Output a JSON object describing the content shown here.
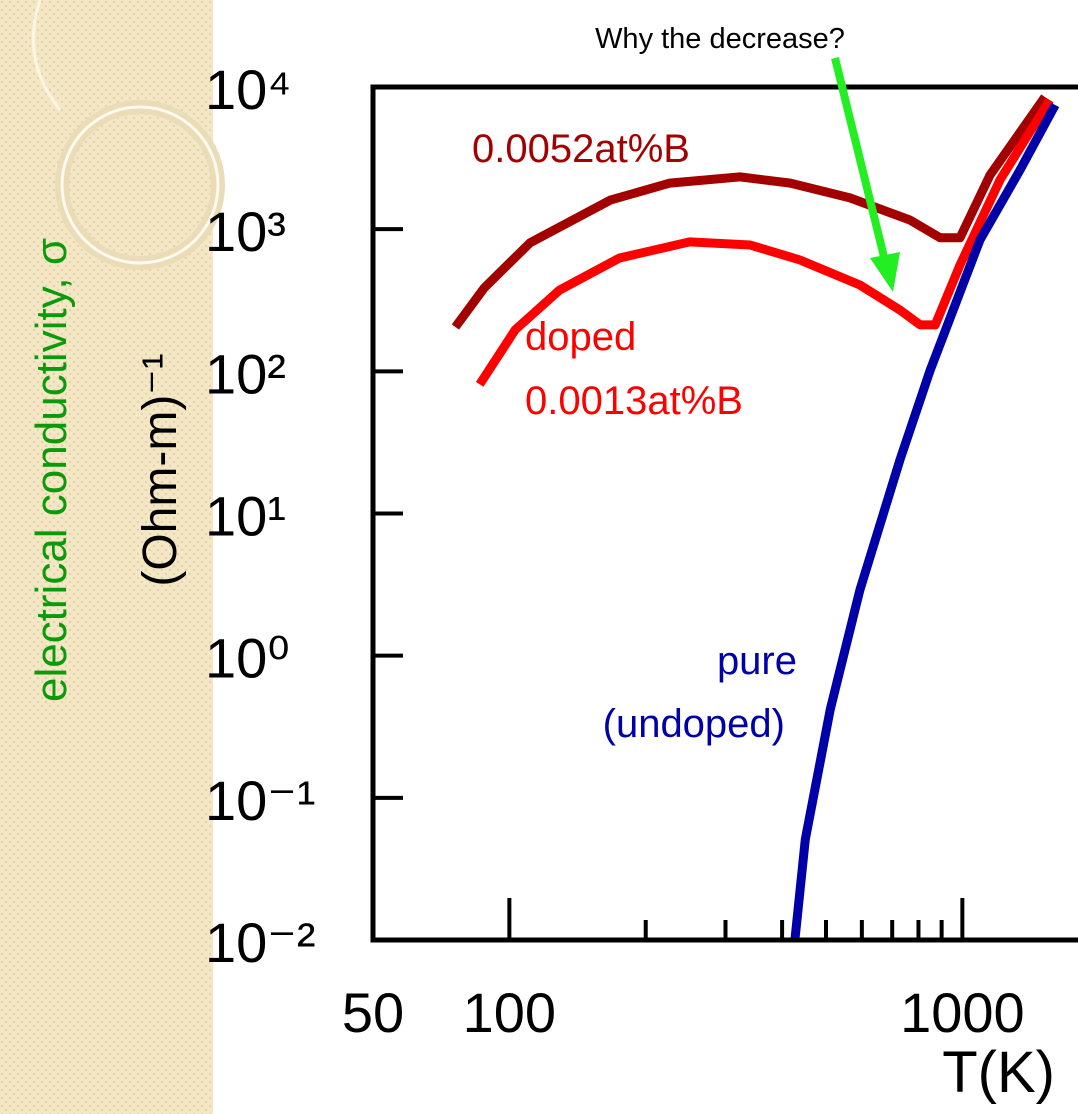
{
  "chart_data": {
    "type": "line",
    "title": "Why the decrease?",
    "xlabel": "T(K)",
    "ylabel": "electrical conductivity, σ",
    "ylabel_unit": "(Ohm-m)⁻¹",
    "xscale": "log",
    "yscale": "log",
    "xlim": [
      50,
      1800
    ],
    "ylim": [
      0.01,
      10000
    ],
    "xticks": [
      50,
      100,
      1000
    ],
    "x_minor_ticks": [
      200,
      300,
      400,
      500,
      600,
      700,
      800,
      900
    ],
    "yticks": [
      {
        "value": 10000,
        "label": "10⁴"
      },
      {
        "value": 1000,
        "label": "10³"
      },
      {
        "value": 100,
        "label": "10²"
      },
      {
        "value": 10,
        "label": "10¹"
      },
      {
        "value": 1,
        "label": "10⁰"
      },
      {
        "value": 0.1,
        "label": "10⁻¹"
      },
      {
        "value": 0.01,
        "label": "10⁻²"
      }
    ],
    "series": [
      {
        "name": "0.0052at%B",
        "color": "#a30000",
        "x": [
          76,
          88,
          111,
          167,
          226,
          323,
          417,
          565,
          766,
          893,
          988,
          1151,
          1521
        ],
        "values": [
          205,
          386,
          800,
          1600,
          2110,
          2330,
          2110,
          1660,
          1160,
          870,
          870,
          2400,
          8500
        ]
      },
      {
        "name": "0.0013at%B",
        "label_prefix": "doped",
        "color": "#ff0000",
        "x": [
          86,
          103,
          129,
          175,
          250,
          340,
          438,
          594,
          728,
          807,
          871,
          988,
          1211,
          1560
        ],
        "values": [
          81,
          196,
          373,
          627,
          813,
          774,
          607,
          405,
          270,
          212,
          212,
          560,
          2220,
          8100
        ]
      },
      {
        "name": "(undoped)",
        "label_prefix": "pure",
        "color": "#0000a8",
        "x": [
          427,
          450,
          511,
          594,
          728,
          849,
          1094,
          1340,
          1603
        ],
        "values": [
          0.01,
          0.051,
          0.42,
          2.9,
          23.8,
          102,
          840,
          2600,
          7470
        ]
      }
    ]
  }
}
